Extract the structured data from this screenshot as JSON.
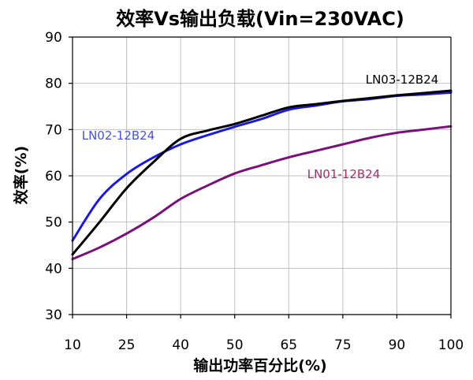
{
  "chart_data": {
    "type": "line",
    "title": "效率Vs输出负载(Vin=230VAC)",
    "xlabel": "输出功率百分比(%)",
    "ylabel": "效率(%)",
    "categories": [
      "10",
      "25",
      "40",
      "50",
      "65",
      "75",
      "90",
      "100"
    ],
    "ylim": [
      30,
      90
    ],
    "yticks": [
      30,
      40,
      50,
      60,
      70,
      80,
      90
    ],
    "grid": true,
    "legend": "none",
    "series": [
      {
        "name": "LN03-12B24",
        "color": "#000000",
        "label_color": "#000000",
        "x": [
          10,
          17.5,
          25,
          32.5,
          40,
          45,
          50,
          57.5,
          65,
          70,
          75,
          82.5,
          90,
          95,
          100
        ],
        "y": [
          43,
          50,
          57.3,
          63,
          68,
          69.8,
          71.2,
          73,
          74.8,
          75.5,
          76.2,
          76.8,
          77.4,
          77.9,
          78.4
        ]
      },
      {
        "name": "LN02-12B24",
        "color": "#1a1adc",
        "label_color": "#4a52d6",
        "x": [
          10,
          17.5,
          25,
          32.5,
          40,
          45,
          50,
          57.5,
          65,
          70,
          75,
          82.5,
          90,
          95,
          100
        ],
        "y": [
          46,
          55,
          60.4,
          64,
          66.8,
          68.8,
          70.6,
          72.3,
          74.3,
          75.2,
          76.1,
          76.6,
          77.3,
          77.6,
          78
        ]
      },
      {
        "name": "LN01-12B24",
        "color": "#7a117a",
        "label_color": "#9c2f6e",
        "x": [
          10,
          17.5,
          25,
          32.5,
          40,
          45,
          50,
          57.5,
          65,
          70,
          75,
          82.5,
          90,
          95,
          100
        ],
        "y": [
          42,
          44.5,
          47.5,
          51,
          55,
          57.9,
          60.5,
          62.3,
          64,
          65.4,
          66.8,
          68.2,
          69.3,
          70,
          70.7
        ]
      }
    ]
  }
}
